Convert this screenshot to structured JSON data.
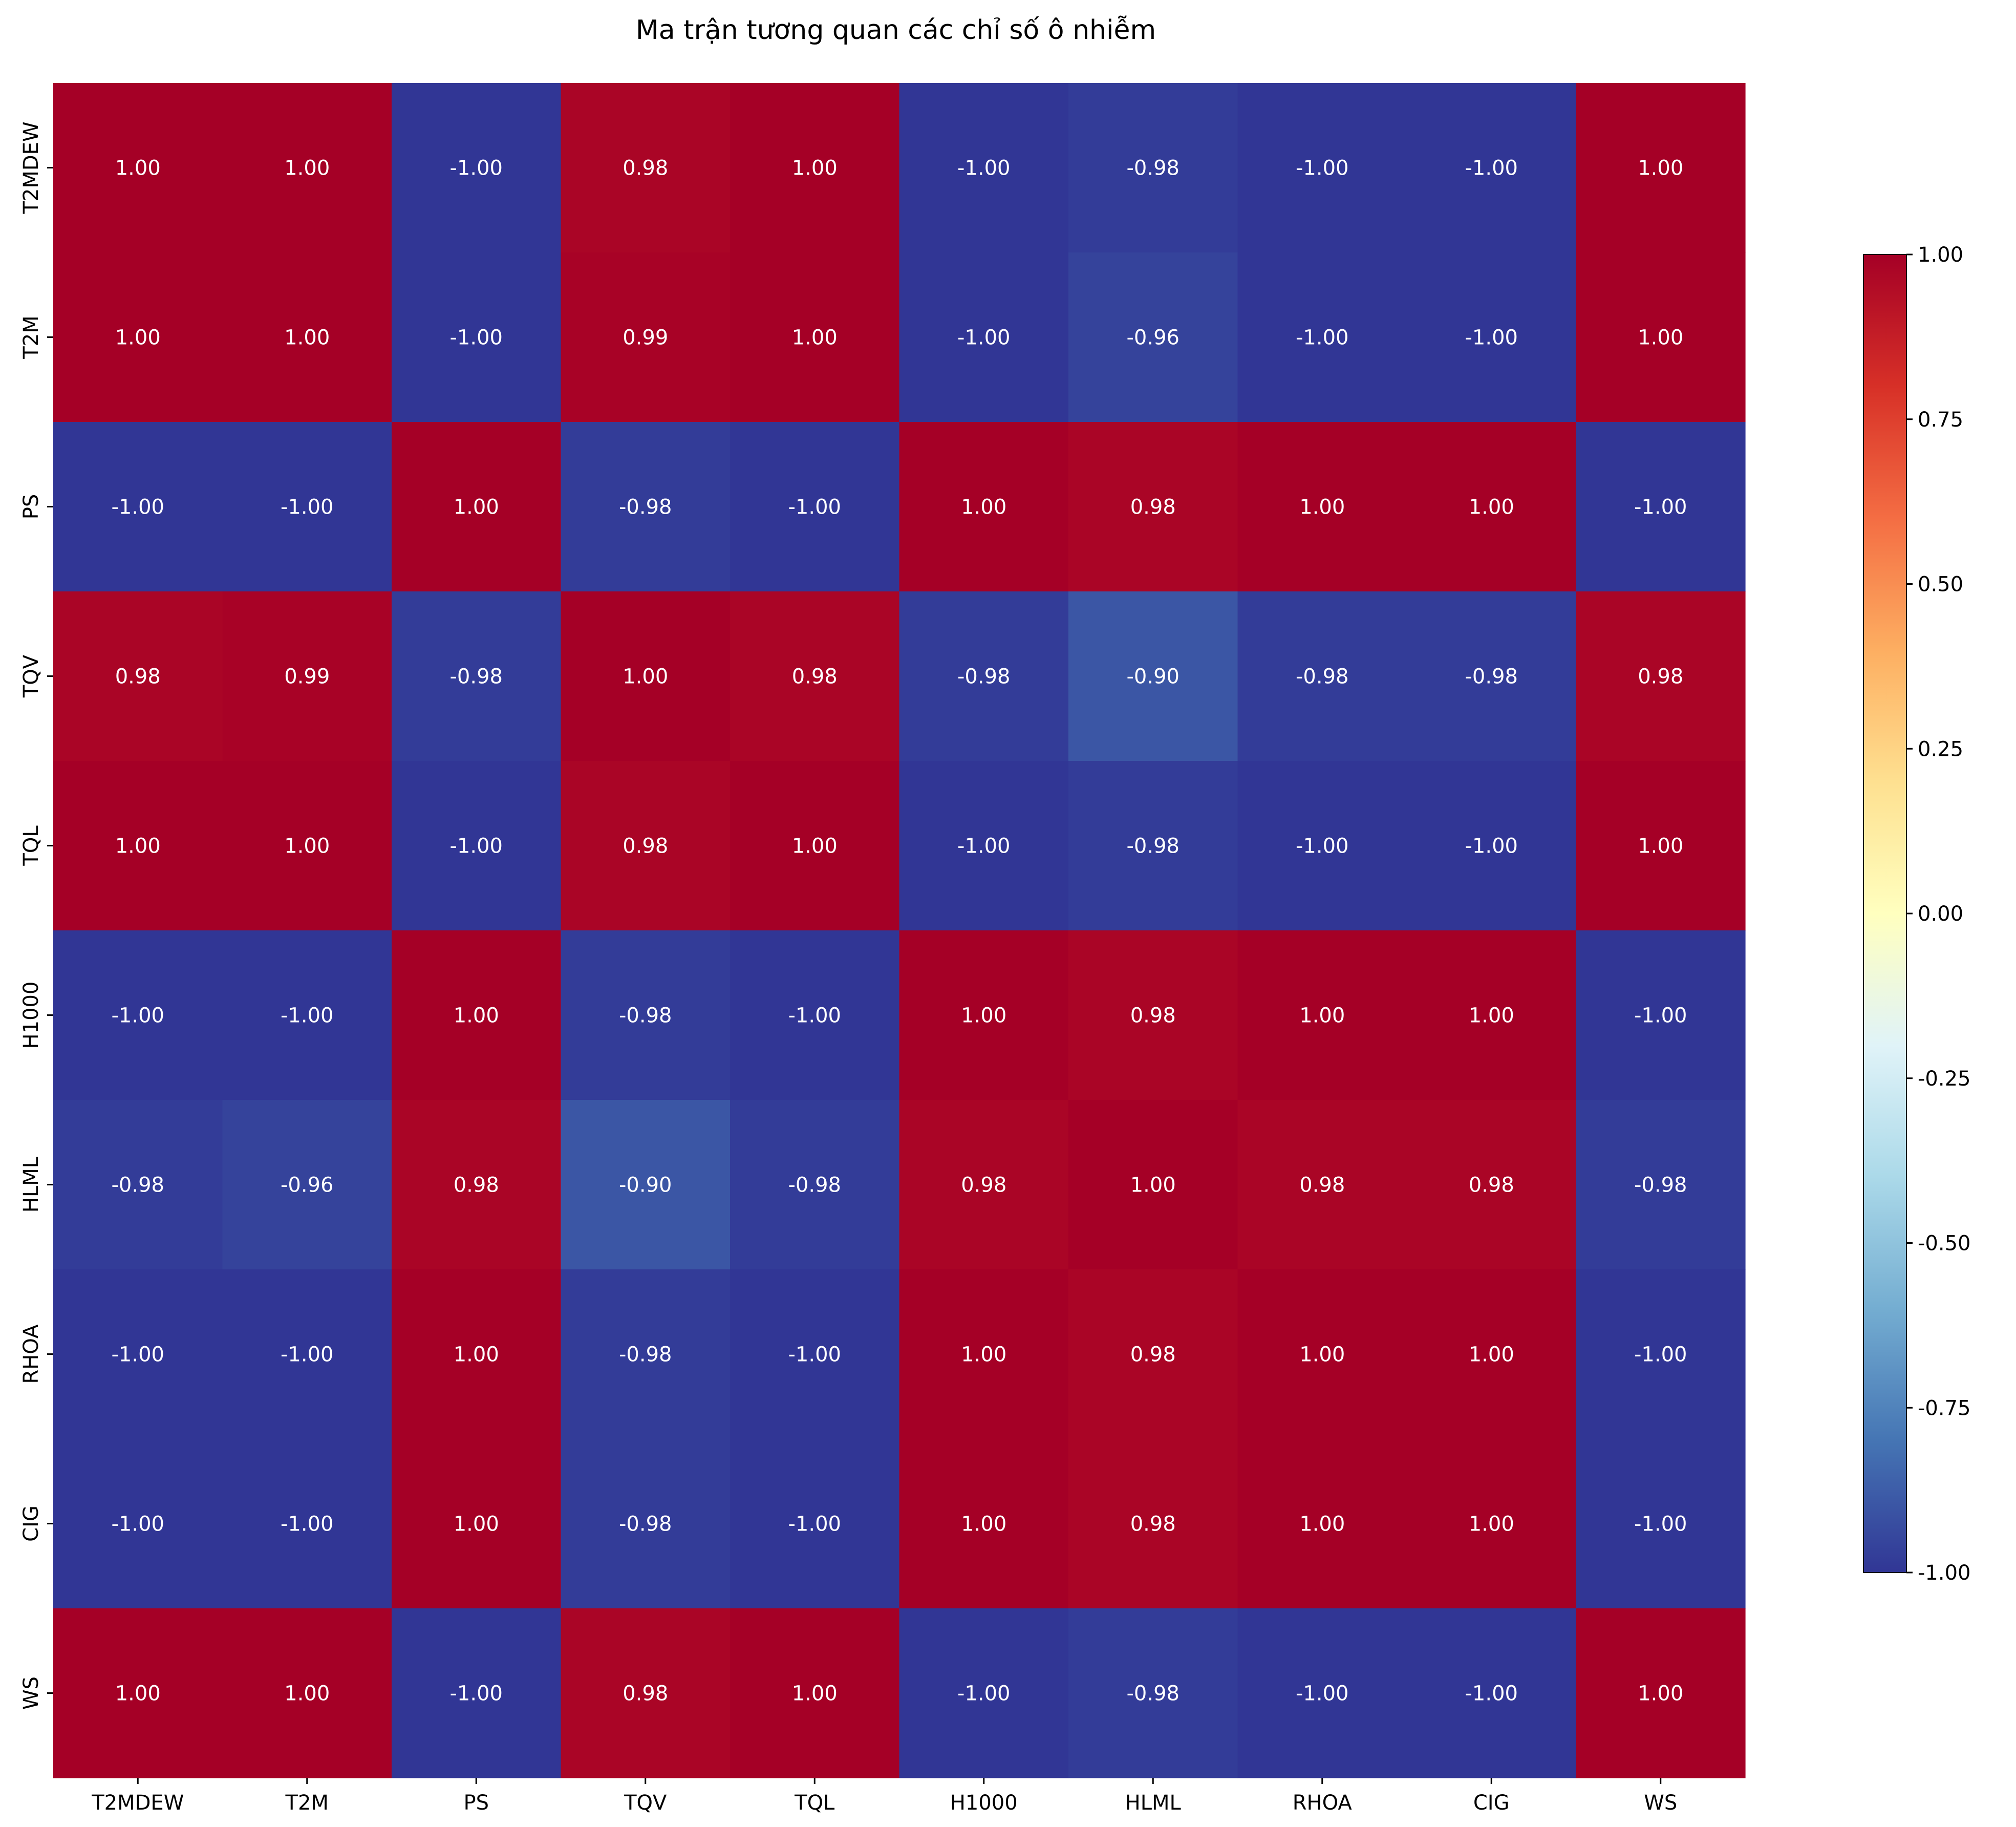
{
  "chart_data": {
    "type": "heatmap",
    "title": "Ma trận tương quan các chỉ số ô nhiễm",
    "row_labels": [
      "T2MDEW",
      "T2M",
      "PS",
      "TQV",
      "TQL",
      "H1000",
      "HLML",
      "RHOA",
      "CIG",
      "WS"
    ],
    "col_labels": [
      "T2MDEW",
      "T2M",
      "PS",
      "TQV",
      "TQL",
      "H1000",
      "HLML",
      "RHOA",
      "CIG",
      "WS"
    ],
    "values": [
      [
        1.0,
        1.0,
        -1.0,
        0.98,
        1.0,
        -1.0,
        -0.98,
        -1.0,
        -1.0,
        1.0
      ],
      [
        1.0,
        1.0,
        -1.0,
        0.99,
        1.0,
        -1.0,
        -0.96,
        -1.0,
        -1.0,
        1.0
      ],
      [
        -1.0,
        -1.0,
        1.0,
        -0.98,
        -1.0,
        1.0,
        0.98,
        1.0,
        1.0,
        -1.0
      ],
      [
        0.98,
        0.99,
        -0.98,
        1.0,
        0.98,
        -0.98,
        -0.9,
        -0.98,
        -0.98,
        0.98
      ],
      [
        1.0,
        1.0,
        -1.0,
        0.98,
        1.0,
        -1.0,
        -0.98,
        -1.0,
        -1.0,
        1.0
      ],
      [
        -1.0,
        -1.0,
        1.0,
        -0.98,
        -1.0,
        1.0,
        0.98,
        1.0,
        1.0,
        -1.0
      ],
      [
        -0.98,
        -0.96,
        0.98,
        -0.9,
        -0.98,
        0.98,
        1.0,
        0.98,
        0.98,
        -0.98
      ],
      [
        -1.0,
        -1.0,
        1.0,
        -0.98,
        -1.0,
        1.0,
        0.98,
        1.0,
        1.0,
        -1.0
      ],
      [
        -1.0,
        -1.0,
        1.0,
        -0.98,
        -1.0,
        1.0,
        0.98,
        1.0,
        1.0,
        -1.0
      ],
      [
        1.0,
        1.0,
        -1.0,
        0.98,
        1.0,
        -1.0,
        -0.98,
        -1.0,
        -1.0,
        1.0
      ]
    ],
    "value_format": "0.00",
    "colormap": "RdYlBu_r",
    "colorbar": {
      "range": [
        -1.0,
        1.0
      ],
      "ticks": [
        "1.00",
        "0.75",
        "0.50",
        "0.25",
        "0.00",
        "-0.25",
        "-0.50",
        "-0.75",
        "-1.00"
      ],
      "placement": "right"
    },
    "colormap_stops": [
      "#313695",
      "#4575b4",
      "#74add1",
      "#abd9e9",
      "#e0f3f8",
      "#ffffbf",
      "#fee090",
      "#fdae61",
      "#f46d43",
      "#d73027",
      "#a50026"
    ]
  }
}
